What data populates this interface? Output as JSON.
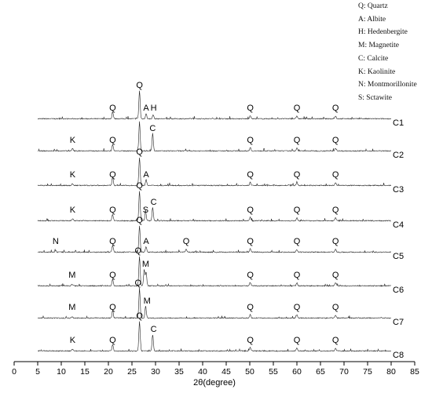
{
  "chart_data": {
    "type": "line",
    "title": "",
    "xlabel": "2θ(degree)",
    "ylabel": "",
    "xlim": [
      0,
      85
    ],
    "xticks": [
      0,
      5,
      10,
      15,
      20,
      25,
      30,
      35,
      40,
      45,
      50,
      55,
      60,
      65,
      70,
      75,
      80,
      85
    ],
    "x_range_of_data": [
      5,
      80
    ],
    "legend": [
      "Q: Quartz",
      "A: Albite",
      "H: Hedenbergite",
      "M: Magnetite",
      "C: Calcite",
      "K: Kaolinite",
      "N: Montmorillonite",
      "S: Sctawite"
    ],
    "legend_position": "top-right",
    "series": [
      {
        "name": "C1",
        "peaks": [
          {
            "x": 20.9,
            "h": 0.25
          },
          {
            "x": 26.6,
            "h": 1.0
          },
          {
            "x": 28.0,
            "h": 0.18
          },
          {
            "x": 29.5,
            "h": 0.14
          },
          {
            "x": 50.1,
            "h": 0.12
          },
          {
            "x": 60.0,
            "h": 0.1
          },
          {
            "x": 68.2,
            "h": 0.1
          }
        ],
        "labels": [
          {
            "x": 20.9,
            "text": "Q"
          },
          {
            "x": 26.6,
            "text": "Q",
            "top": true
          },
          {
            "x": 28.0,
            "text": "A"
          },
          {
            "x": 29.6,
            "text": "H"
          },
          {
            "x": 50.1,
            "text": "Q"
          },
          {
            "x": 60.0,
            "text": "Q"
          },
          {
            "x": 68.2,
            "text": "Q"
          }
        ]
      },
      {
        "name": "C2",
        "peaks": [
          {
            "x": 12.4,
            "h": 0.08
          },
          {
            "x": 20.9,
            "h": 0.22
          },
          {
            "x": 26.6,
            "h": 1.0
          },
          {
            "x": 29.4,
            "h": 0.6
          },
          {
            "x": 50.1,
            "h": 0.12
          },
          {
            "x": 60.0,
            "h": 0.1
          },
          {
            "x": 68.2,
            "h": 0.1
          }
        ],
        "labels": [
          {
            "x": 12.4,
            "text": "K"
          },
          {
            "x": 20.9,
            "text": "Q"
          },
          {
            "x": 29.4,
            "text": "C"
          },
          {
            "x": 50.1,
            "text": "Q"
          },
          {
            "x": 60.0,
            "text": "Q"
          },
          {
            "x": 68.2,
            "text": "Q"
          }
        ]
      },
      {
        "name": "C3",
        "peaks": [
          {
            "x": 12.4,
            "h": 0.06
          },
          {
            "x": 20.9,
            "h": 0.3
          },
          {
            "x": 26.6,
            "h": 1.0
          },
          {
            "x": 28.0,
            "h": 0.2
          },
          {
            "x": 50.1,
            "h": 0.12
          },
          {
            "x": 60.0,
            "h": 0.1
          },
          {
            "x": 68.2,
            "h": 0.1
          }
        ],
        "labels": [
          {
            "x": 12.4,
            "text": "K"
          },
          {
            "x": 20.9,
            "text": "Q"
          },
          {
            "x": 26.6,
            "text": "Q",
            "top": true
          },
          {
            "x": 28.0,
            "text": "A"
          },
          {
            "x": 50.1,
            "text": "Q"
          },
          {
            "x": 60.0,
            "text": "Q"
          },
          {
            "x": 68.2,
            "text": "Q"
          }
        ]
      },
      {
        "name": "C4",
        "peaks": [
          {
            "x": 12.4,
            "h": 0.06
          },
          {
            "x": 20.9,
            "h": 0.22
          },
          {
            "x": 26.6,
            "h": 1.0
          },
          {
            "x": 27.9,
            "h": 0.3
          },
          {
            "x": 29.4,
            "h": 0.45
          },
          {
            "x": 50.1,
            "h": 0.12
          },
          {
            "x": 60.0,
            "h": 0.1
          },
          {
            "x": 68.2,
            "h": 0.1
          }
        ],
        "labels": [
          {
            "x": 12.4,
            "text": "K"
          },
          {
            "x": 20.9,
            "text": "Q"
          },
          {
            "x": 26.6,
            "text": "Q",
            "top": true
          },
          {
            "x": 27.9,
            "text": "S"
          },
          {
            "x": 29.6,
            "text": "C"
          },
          {
            "x": 50.1,
            "text": "Q"
          },
          {
            "x": 60.0,
            "text": "Q"
          },
          {
            "x": 68.2,
            "text": "Q"
          }
        ]
      },
      {
        "name": "C5",
        "peaks": [
          {
            "x": 8.8,
            "h": 0.05
          },
          {
            "x": 20.9,
            "h": 0.25
          },
          {
            "x": 26.6,
            "h": 1.0
          },
          {
            "x": 28.0,
            "h": 0.2
          },
          {
            "x": 36.5,
            "h": 0.1
          },
          {
            "x": 50.1,
            "h": 0.12
          },
          {
            "x": 60.0,
            "h": 0.1
          },
          {
            "x": 68.2,
            "h": 0.1
          }
        ],
        "labels": [
          {
            "x": 8.8,
            "text": "N"
          },
          {
            "x": 20.9,
            "text": "Q"
          },
          {
            "x": 26.6,
            "text": "Q",
            "top": true
          },
          {
            "x": 28.0,
            "text": "A"
          },
          {
            "x": 36.5,
            "text": "Q"
          },
          {
            "x": 50.1,
            "text": "Q"
          },
          {
            "x": 60.0,
            "text": "Q"
          },
          {
            "x": 68.2,
            "text": "Q"
          }
        ]
      },
      {
        "name": "C6",
        "peaks": [
          {
            "x": 12.3,
            "h": 0.05
          },
          {
            "x": 20.9,
            "h": 0.22
          },
          {
            "x": 26.6,
            "h": 1.0
          },
          {
            "x": 27.6,
            "h": 0.55
          },
          {
            "x": 28.0,
            "h": 0.45
          },
          {
            "x": 50.1,
            "h": 0.12
          },
          {
            "x": 60.0,
            "h": 0.1
          },
          {
            "x": 68.2,
            "h": 0.1
          }
        ],
        "labels": [
          {
            "x": 12.3,
            "text": "M"
          },
          {
            "x": 20.9,
            "text": "Q"
          },
          {
            "x": 26.3,
            "text": "Q"
          },
          {
            "x": 27.9,
            "text": "M"
          },
          {
            "x": 50.1,
            "text": "Q"
          },
          {
            "x": 60.0,
            "text": "Q"
          },
          {
            "x": 68.2,
            "text": "Q"
          }
        ]
      },
      {
        "name": "C7",
        "peaks": [
          {
            "x": 12.3,
            "h": 0.05
          },
          {
            "x": 20.9,
            "h": 0.25
          },
          {
            "x": 26.6,
            "h": 1.0
          },
          {
            "x": 27.9,
            "h": 0.4
          },
          {
            "x": 50.1,
            "h": 0.12
          },
          {
            "x": 60.0,
            "h": 0.1
          },
          {
            "x": 68.2,
            "h": 0.1
          }
        ],
        "labels": [
          {
            "x": 12.3,
            "text": "M"
          },
          {
            "x": 20.9,
            "text": "Q"
          },
          {
            "x": 26.3,
            "text": "Q"
          },
          {
            "x": 28.2,
            "text": "M"
          },
          {
            "x": 50.1,
            "text": "Q"
          },
          {
            "x": 60.0,
            "text": "Q"
          },
          {
            "x": 68.2,
            "text": "Q"
          }
        ]
      },
      {
        "name": "C8",
        "peaks": [
          {
            "x": 12.4,
            "h": 0.06
          },
          {
            "x": 20.9,
            "h": 0.22
          },
          {
            "x": 26.6,
            "h": 1.0
          },
          {
            "x": 29.4,
            "h": 0.55
          },
          {
            "x": 50.1,
            "h": 0.12
          },
          {
            "x": 60.0,
            "h": 0.1
          },
          {
            "x": 68.2,
            "h": 0.1
          }
        ],
        "labels": [
          {
            "x": 12.4,
            "text": "K"
          },
          {
            "x": 20.9,
            "text": "Q"
          },
          {
            "x": 26.6,
            "text": "Q",
            "top": true
          },
          {
            "x": 29.6,
            "text": "C"
          },
          {
            "x": 50.1,
            "text": "Q"
          },
          {
            "x": 60.0,
            "text": "Q"
          },
          {
            "x": 68.2,
            "text": "Q"
          }
        ]
      }
    ]
  }
}
